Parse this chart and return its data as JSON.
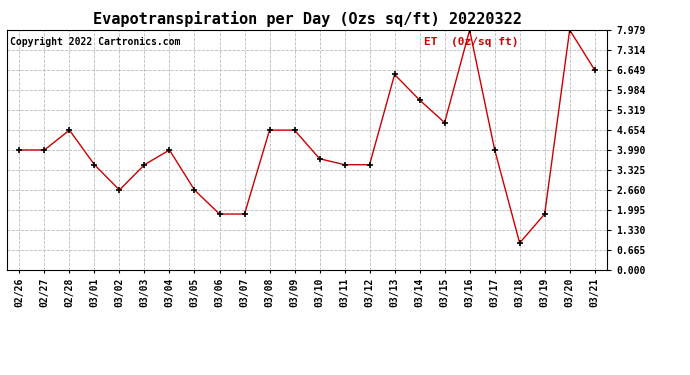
{
  "title": "Evapotranspiration per Day (Ozs sq/ft) 20220322",
  "copyright": "Copyright 2022 Cartronics.com",
  "legend_label": "ET  (0z/sq ft)",
  "dates": [
    "02/26",
    "02/27",
    "02/28",
    "03/01",
    "03/02",
    "03/03",
    "03/04",
    "03/05",
    "03/06",
    "03/07",
    "03/08",
    "03/09",
    "03/10",
    "03/11",
    "03/12",
    "03/13",
    "03/14",
    "03/15",
    "03/16",
    "03/17",
    "03/18",
    "03/19",
    "03/20",
    "03/21"
  ],
  "values": [
    3.99,
    3.99,
    4.65,
    3.5,
    2.66,
    3.5,
    3.99,
    2.66,
    1.86,
    1.86,
    4.65,
    4.65,
    3.7,
    3.5,
    3.5,
    6.5,
    5.65,
    4.9,
    7.98,
    4.0,
    0.9,
    1.86,
    7.98,
    6.65
  ],
  "line_color": "#cc0000",
  "marker_color": "#000000",
  "background_color": "#ffffff",
  "grid_color": "#bbbbbb",
  "title_fontsize": 11,
  "copyright_fontsize": 7,
  "legend_fontsize": 8,
  "tick_fontsize": 7,
  "ytick_fontsize": 7,
  "legend_color": "#cc0000",
  "ylim": [
    0.0,
    7.979
  ],
  "yticks": [
    0.0,
    0.665,
    1.33,
    1.995,
    2.66,
    3.325,
    3.99,
    4.654,
    5.319,
    5.984,
    6.649,
    7.314,
    7.979
  ]
}
